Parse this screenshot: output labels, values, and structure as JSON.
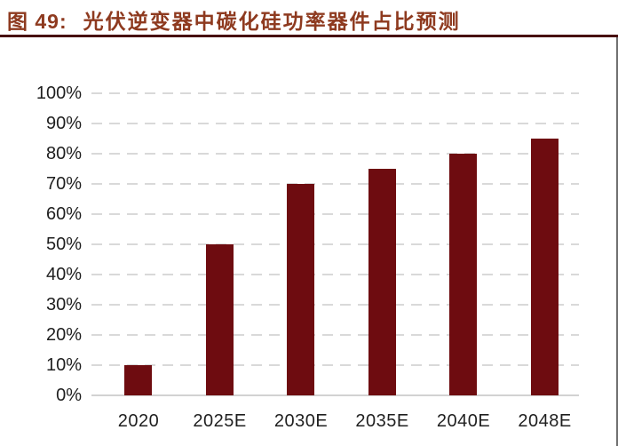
{
  "header": {
    "figure_label": "图 49:",
    "title": "光伏逆变器中碳化硅功率器件占比预测"
  },
  "colors": {
    "title": "#8e3a1f",
    "rule": "#470a0d",
    "bar": "#6e0c10",
    "gridline": "#d9d9d9",
    "axis": "#d2d2d2",
    "tick_text": "#1f1f1f",
    "right_edge": "#3f3f3f",
    "background": "#ffffff"
  },
  "chart_data": {
    "type": "bar",
    "title": "光伏逆变器中碳化硅功率器件占比预测",
    "categories": [
      "2020",
      "2025E",
      "2030E",
      "2035E",
      "2040E",
      "2048E"
    ],
    "values": [
      10,
      50,
      70,
      75,
      80,
      85
    ],
    "series_name": "碳化硅功率器件占比",
    "xlabel": "",
    "ylabel": "",
    "ylim": [
      0,
      100
    ],
    "ytick_step": 10,
    "yticks": [
      "100%",
      "90%",
      "80%",
      "70%",
      "60%",
      "50%",
      "40%",
      "30%",
      "20%",
      "10%",
      "0%"
    ],
    "ytick_values": [
      100,
      90,
      80,
      70,
      60,
      50,
      40,
      30,
      20,
      10,
      0
    ],
    "grid": "dashed-horizontal",
    "legend": "none",
    "bar_color": "#6e0c10"
  }
}
